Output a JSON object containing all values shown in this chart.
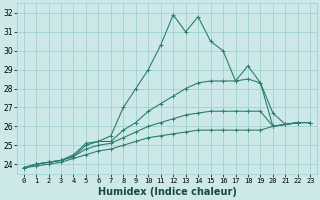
{
  "xlabel": "Humidex (Indice chaleur)",
  "ylabel": "",
  "bg_color": "#cce8e8",
  "grid_color": "#99cccc",
  "line_color": "#2e7d6e",
  "xlim": [
    -0.5,
    23.5
  ],
  "ylim": [
    23.5,
    32.5
  ],
  "yticks": [
    24,
    25,
    26,
    27,
    28,
    29,
    30,
    31,
    32
  ],
  "xticks": [
    0,
    1,
    2,
    3,
    4,
    5,
    6,
    7,
    8,
    9,
    10,
    11,
    12,
    13,
    14,
    15,
    16,
    17,
    18,
    19,
    20,
    21,
    22,
    23
  ],
  "xtick_labels": [
    "0",
    "1",
    "2",
    "3",
    "4",
    "5",
    "6",
    "7",
    "8",
    "9",
    "10",
    "11",
    "12",
    "13",
    "14",
    "15",
    "16",
    "17",
    "18",
    "19",
    "20",
    "21",
    "22",
    "23"
  ],
  "series": [
    [
      23.8,
      24.0,
      24.1,
      24.2,
      24.5,
      25.1,
      25.2,
      25.5,
      27.0,
      28.0,
      29.0,
      30.3,
      31.9,
      31.0,
      31.8,
      30.5,
      30.0,
      28.4,
      29.2,
      28.3,
      26.7,
      26.1,
      26.2,
      26.2
    ],
    [
      23.8,
      24.0,
      24.1,
      24.2,
      24.4,
      25.0,
      25.2,
      25.2,
      25.8,
      26.2,
      26.8,
      27.2,
      27.6,
      28.0,
      28.3,
      28.4,
      28.4,
      28.4,
      28.5,
      28.3,
      26.0,
      26.1,
      26.2,
      26.2
    ],
    [
      23.8,
      24.0,
      24.1,
      24.2,
      24.4,
      24.8,
      25.0,
      25.1,
      25.4,
      25.7,
      26.0,
      26.2,
      26.4,
      26.6,
      26.7,
      26.8,
      26.8,
      26.8,
      26.8,
      26.8,
      26.0,
      26.1,
      26.2,
      26.2
    ],
    [
      23.8,
      23.9,
      24.0,
      24.1,
      24.3,
      24.5,
      24.7,
      24.8,
      25.0,
      25.2,
      25.4,
      25.5,
      25.6,
      25.7,
      25.8,
      25.8,
      25.8,
      25.8,
      25.8,
      25.8,
      26.0,
      26.1,
      26.2,
      26.2
    ]
  ],
  "marker": "+",
  "markersize": 3,
  "linewidth": 0.8,
  "xlabel_fontsize": 7,
  "tick_fontsize": 5,
  "ytick_fontsize": 5.5
}
